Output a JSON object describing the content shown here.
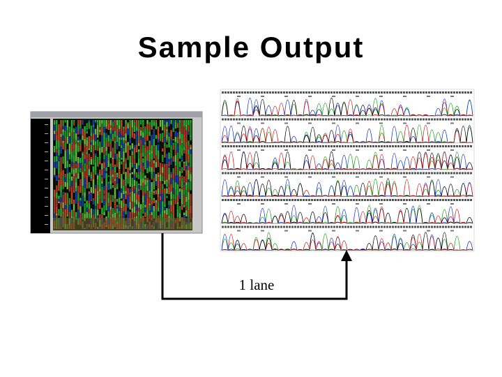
{
  "title": "Sample Output",
  "arrow_label": "1 lane"
}
